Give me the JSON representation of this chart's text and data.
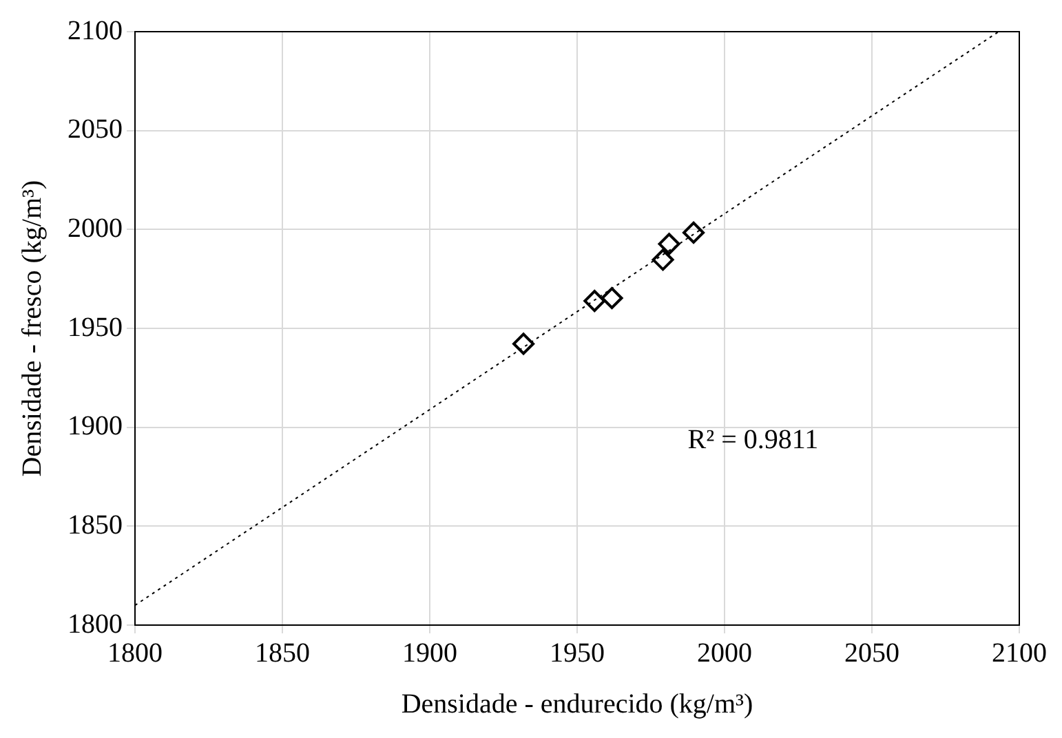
{
  "chart_data": {
    "type": "scatter",
    "xlabel": "Densidade - endurecido (kg/m³)",
    "ylabel": "Densidade - fresco (kg/m³)",
    "x": [
      1931.8,
      1955.9,
      1961.8,
      1979.1,
      1981.2,
      1989.5
    ],
    "series": [
      {
        "color": "#000000",
        "marker": "diamond",
        "values": [
          1942.2,
          1963.9,
          1965.3,
          1984.7,
          1992.7,
          1998.4
        ]
      },
      {
        "type": "line",
        "color": "#000000",
        "marker": "none",
        "line_style": "dotted",
        "x": [
          1800,
          2093
        ],
        "values": [
          1810,
          2100
        ]
      }
    ],
    "xlim": [
      1800,
      2100
    ],
    "ylim": [
      1800,
      2100
    ],
    "xticks": [
      1800,
      1850,
      1900,
      1950,
      2000,
      2050,
      2100
    ],
    "yticks": [
      1800,
      1850,
      1900,
      1950,
      2000,
      2050,
      2100
    ],
    "grid": true,
    "legend": false,
    "annotations": [
      "R² = 0.9811"
    ]
  }
}
